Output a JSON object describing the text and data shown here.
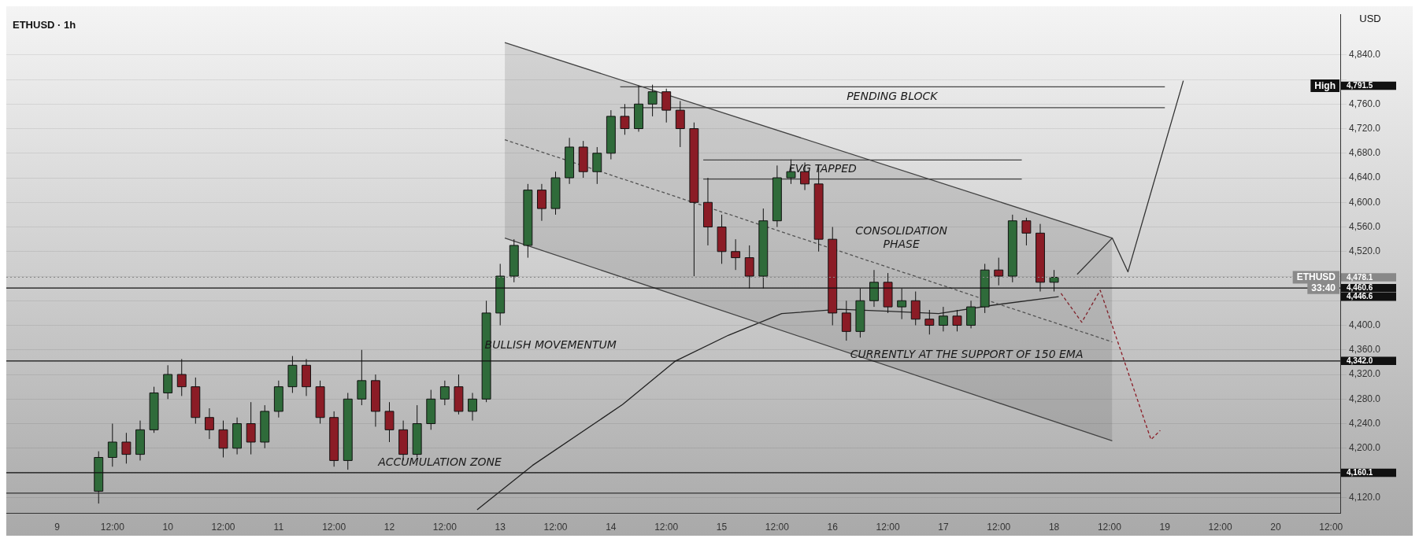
{
  "chart_data": {
    "type": "candlestick",
    "title": "ETHUSD · 1h",
    "ylabel": "USD",
    "xlim": [
      "--09-08T13:00",
      "--09-20T14:00"
    ],
    "ylim": [
      4094,
      4906
    ],
    "xticks": [
      {
        "value": "--09-09",
        "label": "9"
      },
      {
        "value": "--09-09T12:00",
        "label": "12:00"
      },
      {
        "value": "--09-10",
        "label": "10"
      },
      {
        "value": "--09-10T12:00",
        "label": "12:00"
      },
      {
        "value": "--09-11",
        "label": "11"
      },
      {
        "value": "--09-11T12:00",
        "label": "12:00"
      },
      {
        "value": "--09-12",
        "label": "12"
      },
      {
        "value": "--09-12T12:00",
        "label": "12:00"
      },
      {
        "value": "--09-13",
        "label": "13"
      },
      {
        "value": "--09-13T12:00",
        "label": "12:00"
      },
      {
        "value": "--09-14",
        "label": "14"
      },
      {
        "value": "--09-14T12:00",
        "label": "12:00"
      },
      {
        "value": "--09-15",
        "label": "15"
      },
      {
        "value": "--09-15T12:00",
        "label": "12:00"
      },
      {
        "value": "--09-16",
        "label": "16"
      },
      {
        "value": "--09-16T12:00",
        "label": "12:00"
      },
      {
        "value": "--09-17",
        "label": "17"
      },
      {
        "value": "--09-17T12:00",
        "label": "12:00"
      },
      {
        "value": "--09-18",
        "label": "18"
      },
      {
        "value": "--09-18T12:00",
        "label": "12:00"
      },
      {
        "value": "--09-19",
        "label": "19"
      },
      {
        "value": "--09-19T12:00",
        "label": "12:00"
      },
      {
        "value": "--09-20",
        "label": "20"
      },
      {
        "value": "--09-20T12:00",
        "label": "12:00"
      }
    ],
    "yticks": [
      {
        "value": 4120,
        "label": "4,120.0"
      },
      {
        "value": 4160,
        "label": null
      },
      {
        "value": 4200,
        "label": "4,200.0"
      },
      {
        "value": 4240,
        "label": "4,240.0"
      },
      {
        "value": 4280,
        "label": "4,280.0"
      },
      {
        "value": 4320,
        "label": "4,320.0"
      },
      {
        "value": 4360,
        "label": "4,360.0"
      },
      {
        "value": 4400,
        "label": "4,400.0"
      },
      {
        "value": 4440,
        "label": null
      },
      {
        "value": 4480,
        "label": null
      },
      {
        "value": 4520,
        "label": "4,520.0"
      },
      {
        "value": 4560,
        "label": "4,560.0"
      },
      {
        "value": 4600,
        "label": "4,600.0"
      },
      {
        "value": 4640,
        "label": "4,640.0"
      },
      {
        "value": 4680,
        "label": "4,680.0"
      },
      {
        "value": 4720,
        "label": "4,720.0"
      },
      {
        "value": 4760,
        "label": "4,760.0"
      },
      {
        "value": 4800,
        "label": null
      },
      {
        "value": 4840,
        "label": "4,840.0"
      }
    ],
    "grid": "y",
    "legend": false,
    "series": [
      {
        "type": "line",
        "color": "#555555",
        "line_style": "dashed",
        "x": [
          "--09-13T01:00",
          "--09-18T12:36"
        ],
        "values": [
          4702,
          4373
        ],
        "lower": [
          4542,
          4212
        ],
        "upper": [
          4860,
          4542
        ]
      },
      {
        "type": "line",
        "color": "#444444",
        "x": [
          "--09-13T01:00",
          "--09-18T12:36"
        ],
        "values": [
          4860,
          4542
        ]
      },
      {
        "type": "line",
        "color": "#444444",
        "x": [
          "--09-13T01:00",
          "--09-18T12:36"
        ],
        "values": [
          4542,
          4212
        ]
      },
      {
        "type": "line",
        "color": "#222222",
        "x": [
          "--09-12T19:00",
          "--09-13T07:00",
          "--09-14T02:30",
          "--09-14T14:00",
          "--09-15T01:30",
          "--09-15T13:00",
          "--09-16T01:30",
          "--09-16T12:00",
          "--09-16T23:00",
          "--09-17T11:00",
          "--09-18T01:00"
        ],
        "values": [
          4100,
          4172,
          4271,
          4342,
          4384,
          4419,
          4426,
          4423,
          4419,
          4433,
          4446.6
        ]
      },
      {
        "type": "line",
        "color": "#444444",
        "x": [
          "--09-14T02:00",
          "--09-19T00:00"
        ],
        "values": [
          4788,
          4788
        ]
      },
      {
        "type": "line",
        "color": "#444444",
        "x": [
          "--09-14T02:00",
          "--09-19T00:00"
        ],
        "values": [
          4754,
          4754
        ]
      },
      {
        "type": "line",
        "color": "#444444",
        "x": [
          "--09-14T20:00",
          "--09-17T17:00"
        ],
        "values": [
          4669,
          4669
        ]
      },
      {
        "type": "line",
        "color": "#444444",
        "x": [
          "--09-14T20:00",
          "--09-17T17:00"
        ],
        "values": [
          4638,
          4638
        ]
      },
      {
        "type": "line",
        "color": "#333333",
        "x": [
          "--09-18T05:00",
          "--09-18T12:36",
          "--09-18T16:00",
          "--09-19T04:00"
        ],
        "values": [
          4483,
          4542,
          4487,
          4798
        ]
      },
      {
        "type": "line",
        "color": "#8b1c26",
        "line_style": "dashed",
        "x": [
          "--09-18T01:30",
          "--09-18T06:00",
          "--09-18T10:00",
          "--09-18T21:00",
          "--09-18T23:00"
        ],
        "values": [
          4452,
          4405,
          4457,
          4214,
          4229
        ]
      },
      {
        "x": [
          "--09-09T09:00",
          "--09-09T12:00",
          "--09-09T15:00",
          "--09-09T18:00",
          "--09-09T21:00",
          "--09-10T00:00",
          "--09-10T03:00",
          "--09-10T06:00",
          "--09-10T09:00",
          "--09-10T12:00",
          "--09-10T15:00",
          "--09-10T18:00",
          "--09-10T21:00",
          "--09-11T00:00",
          "--09-11T03:00",
          "--09-11T06:00",
          "--09-11T09:00",
          "--09-11T12:00",
          "--09-11T15:00",
          "--09-11T18:00",
          "--09-11T21:00",
          "--09-12T00:00",
          "--09-12T03:00",
          "--09-12T06:00",
          "--09-12T09:00",
          "--09-12T12:00",
          "--09-12T15:00",
          "--09-12T18:00",
          "--09-12T21:00",
          "--09-13T00:00",
          "--09-13T03:00",
          "--09-13T06:00",
          "--09-13T09:00",
          "--09-13T12:00",
          "--09-13T15:00",
          "--09-13T18:00",
          "--09-13T21:00",
          "--09-14T00:00",
          "--09-14T03:00",
          "--09-14T06:00",
          "--09-14T09:00",
          "--09-14T12:00",
          "--09-14T15:00",
          "--09-14T18:00",
          "--09-14T21:00",
          "--09-15T00:00",
          "--09-15T03:00",
          "--09-15T06:00",
          "--09-15T09:00",
          "--09-15T12:00",
          "--09-15T15:00",
          "--09-15T18:00",
          "--09-15T21:00",
          "--09-16T00:00",
          "--09-16T03:00",
          "--09-16T06:00",
          "--09-16T09:00",
          "--09-16T12:00",
          "--09-16T15:00",
          "--09-16T18:00",
          "--09-16T21:00",
          "--09-17T00:00",
          "--09-17T03:00",
          "--09-17T06:00",
          "--09-17T09:00",
          "--09-17T12:00",
          "--09-17T15:00",
          "--09-17T18:00",
          "--09-17T21:00",
          "--09-18T00:00"
        ],
        "ohlc": [
          [
            4130,
            4195,
            4110,
            4185
          ],
          [
            4185,
            4240,
            4170,
            4210
          ],
          [
            4210,
            4225,
            4175,
            4190
          ],
          [
            4190,
            4245,
            4180,
            4230
          ],
          [
            4230,
            4300,
            4225,
            4290
          ],
          [
            4290,
            4335,
            4280,
            4320
          ],
          [
            4320,
            4345,
            4285,
            4300
          ],
          [
            4300,
            4315,
            4240,
            4250
          ],
          [
            4250,
            4265,
            4215,
            4230
          ],
          [
            4230,
            4245,
            4185,
            4200
          ],
          [
            4200,
            4250,
            4190,
            4240
          ],
          [
            4240,
            4275,
            4190,
            4210
          ],
          [
            4210,
            4270,
            4200,
            4260
          ],
          [
            4260,
            4310,
            4250,
            4300
          ],
          [
            4300,
            4350,
            4290,
            4335
          ],
          [
            4335,
            4345,
            4285,
            4300
          ],
          [
            4300,
            4310,
            4240,
            4250
          ],
          [
            4250,
            4260,
            4170,
            4180
          ],
          [
            4180,
            4290,
            4165,
            4280
          ],
          [
            4280,
            4360,
            4270,
            4310
          ],
          [
            4310,
            4320,
            4235,
            4260
          ],
          [
            4260,
            4275,
            4210,
            4230
          ],
          [
            4230,
            4245,
            4180,
            4190
          ],
          [
            4190,
            4270,
            4185,
            4240
          ],
          [
            4240,
            4295,
            4230,
            4280
          ],
          [
            4280,
            4310,
            4270,
            4300
          ],
          [
            4300,
            4320,
            4255,
            4260
          ],
          [
            4260,
            4290,
            4245,
            4280
          ],
          [
            4280,
            4440,
            4275,
            4420
          ],
          [
            4420,
            4500,
            4400,
            4480
          ],
          [
            4480,
            4540,
            4470,
            4530
          ],
          [
            4530,
            4630,
            4510,
            4620
          ],
          [
            4620,
            4630,
            4570,
            4590
          ],
          [
            4590,
            4650,
            4580,
            4640
          ],
          [
            4640,
            4705,
            4630,
            4690
          ],
          [
            4690,
            4700,
            4640,
            4650
          ],
          [
            4650,
            4690,
            4630,
            4680
          ],
          [
            4680,
            4750,
            4670,
            4740
          ],
          [
            4740,
            4760,
            4710,
            4720
          ],
          [
            4720,
            4790,
            4715,
            4760
          ],
          [
            4760,
            4791.5,
            4740,
            4780
          ],
          [
            4780,
            4785,
            4730,
            4750
          ],
          [
            4750,
            4765,
            4690,
            4720
          ],
          [
            4720,
            4730,
            4480,
            4600
          ],
          [
            4600,
            4640,
            4530,
            4560
          ],
          [
            4560,
            4580,
            4500,
            4520
          ],
          [
            4520,
            4540,
            4490,
            4510
          ],
          [
            4510,
            4530,
            4460,
            4480
          ],
          [
            4480,
            4590,
            4460,
            4570
          ],
          [
            4570,
            4660,
            4560,
            4640
          ],
          [
            4640,
            4670,
            4630,
            4650
          ],
          [
            4650,
            4665,
            4620,
            4630
          ],
          [
            4630,
            4660,
            4520,
            4540
          ],
          [
            4540,
            4560,
            4400,
            4420
          ],
          [
            4420,
            4440,
            4375,
            4390
          ],
          [
            4390,
            4460,
            4380,
            4440
          ],
          [
            4440,
            4490,
            4430,
            4470
          ],
          [
            4470,
            4485,
            4420,
            4430
          ],
          [
            4430,
            4460,
            4410,
            4440
          ],
          [
            4440,
            4455,
            4400,
            4410
          ],
          [
            4410,
            4425,
            4385,
            4400
          ],
          [
            4400,
            4430,
            4390,
            4415
          ],
          [
            4415,
            4425,
            4390,
            4400
          ],
          [
            4400,
            4440,
            4395,
            4430
          ],
          [
            4430,
            4500,
            4420,
            4490
          ],
          [
            4490,
            4510,
            4465,
            4480
          ],
          [
            4480,
            4580,
            4470,
            4570
          ],
          [
            4570,
            4575,
            4530,
            4550
          ],
          [
            4550,
            4565,
            4455,
            4470
          ],
          [
            4470,
            4490,
            4455,
            4478.1
          ]
        ],
        "colors": [
          "#2f6b3a",
          "#2f6b3a",
          "#8b1c26",
          "#2f6b3a",
          "#2f6b3a",
          "#2f6b3a",
          "#8b1c26",
          "#8b1c26",
          "#8b1c26",
          "#8b1c26",
          "#2f6b3a",
          "#8b1c26",
          "#2f6b3a",
          "#2f6b3a",
          "#2f6b3a",
          "#8b1c26",
          "#8b1c26",
          "#8b1c26",
          "#2f6b3a",
          "#2f6b3a",
          "#8b1c26",
          "#8b1c26",
          "#8b1c26",
          "#2f6b3a",
          "#2f6b3a",
          "#2f6b3a",
          "#8b1c26",
          "#2f6b3a",
          "#2f6b3a",
          "#2f6b3a",
          "#2f6b3a",
          "#2f6b3a",
          "#8b1c26",
          "#2f6b3a",
          "#2f6b3a",
          "#8b1c26",
          "#2f6b3a",
          "#2f6b3a",
          "#8b1c26",
          "#2f6b3a",
          "#2f6b3a",
          "#8b1c26",
          "#8b1c26",
          "#8b1c26",
          "#8b1c26",
          "#8b1c26",
          "#8b1c26",
          "#8b1c26",
          "#2f6b3a",
          "#2f6b3a",
          "#2f6b3a",
          "#8b1c26",
          "#8b1c26",
          "#8b1c26",
          "#8b1c26",
          "#2f6b3a",
          "#2f6b3a",
          "#8b1c26",
          "#2f6b3a",
          "#8b1c26",
          "#8b1c26",
          "#2f6b3a",
          "#8b1c26",
          "#2f6b3a",
          "#2f6b3a",
          "#8b1c26",
          "#2f6b3a",
          "#8b1c26",
          "#8b1c26",
          "#2f6b3a"
        ]
      }
    ],
    "ref_lines": [
      {
        "axis": "y",
        "value": 4478.1,
        "label": "4,478.1",
        "color": "#888888",
        "line_style": "dotted"
      },
      {
        "axis": "y",
        "value": 4460.6,
        "label": "4,460.6",
        "color": "#111111"
      },
      {
        "axis": "y",
        "value": 4342,
        "label": "4,342.0",
        "color": "#111111"
      },
      {
        "axis": "y",
        "value": 4160.1,
        "label": "4,160.1",
        "color": "#111111"
      },
      {
        "axis": "y",
        "value": 4127,
        "color": "#333333"
      }
    ],
    "annotations": [
      "BULLISH MOVEMENTUM",
      "ACCUMULATION ZONE",
      "PENDING BLOCK",
      "FVG TAPPED",
      "CONSOLIDATION\nPHASE",
      "CURRENTLY AT THE SUPPORT OF 150 EMA",
      "ETHUSD",
      "High",
      "33:40",
      "4,791.5",
      "4,446.6"
    ]
  }
}
